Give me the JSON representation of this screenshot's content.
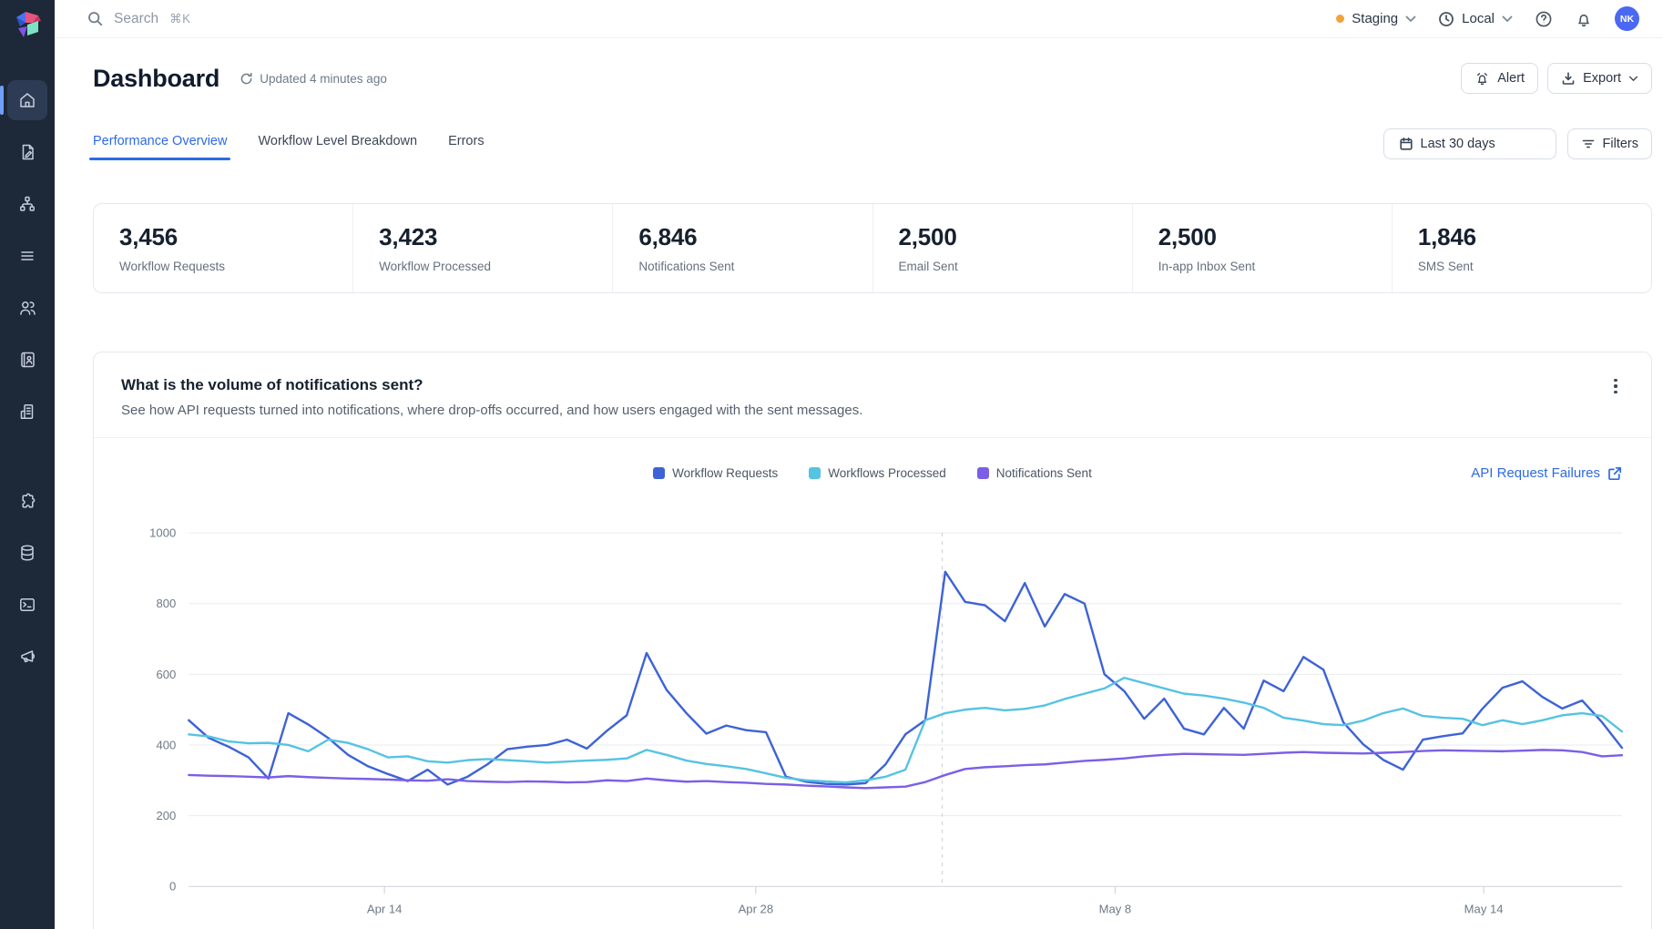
{
  "topbar": {
    "search_placeholder": "Search",
    "search_shortcut": "⌘K",
    "environment": {
      "label": "Staging",
      "dot_color": "#f0a23c"
    },
    "timezone": {
      "label": "Local"
    },
    "avatar_initials": "NK"
  },
  "sidebar": {
    "icons": [
      "home",
      "file-pen",
      "sitemap",
      "list",
      "users",
      "address-book",
      "building",
      "puzzle",
      "database",
      "terminal",
      "megaphone"
    ],
    "active_icon": "home"
  },
  "header": {
    "title": "Dashboard",
    "updated": "Updated 4 minutes ago",
    "alert_label": "Alert",
    "export_label": "Export"
  },
  "tabs": {
    "items": [
      "Performance Overview",
      "Workflow Level Breakdown",
      "Errors"
    ],
    "active_index": 0
  },
  "controls": {
    "date_range": "Last 30 days",
    "filters_label": "Filters"
  },
  "stats": [
    {
      "value": "3,456",
      "label": "Workflow Requests"
    },
    {
      "value": "3,423",
      "label": "Workflow Processed"
    },
    {
      "value": "6,846",
      "label": "Notifications Sent"
    },
    {
      "value": "2,500",
      "label": "Email Sent"
    },
    {
      "value": "2,500",
      "label": "In-app Inbox Sent"
    },
    {
      "value": "1,846",
      "label": "SMS Sent"
    }
  ],
  "chart_card": {
    "title": "What is the volume of notifications sent?",
    "subtitle": "See how API requests turned into notifications, where drop-offs occurred, and how users engaged with the sent messages.",
    "link_label": "API Request Failures"
  },
  "chart_data": {
    "type": "line",
    "title": "What is the volume of notifications sent?",
    "xlabel": "",
    "ylabel": "",
    "ylim": [
      0,
      1000
    ],
    "y_ticks": [
      0,
      200,
      400,
      600,
      800,
      1000
    ],
    "grid": true,
    "legend_position": "top-center",
    "marker_x_fraction": 0.5257,
    "x_ticks": [
      {
        "label": "Apr 14",
        "pos": 0.1365
      },
      {
        "label": "Apr 28",
        "pos": 0.3956
      },
      {
        "label": "May 8",
        "pos": 0.6463
      },
      {
        "label": "May 14",
        "pos": 0.9035
      }
    ],
    "series": [
      {
        "name": "Workflow Requests",
        "color": "#3d63d6",
        "values": [
          470,
          420,
          395,
          365,
          305,
          490,
          458,
          420,
          372,
          340,
          318,
          298,
          330,
          288,
          310,
          345,
          388,
          395,
          400,
          415,
          390,
          440,
          484,
          660,
          556,
          490,
          432,
          455,
          442,
          436,
          310,
          296,
          290,
          288,
          292,
          345,
          430,
          470,
          890,
          805,
          795,
          750,
          858,
          735,
          827,
          800,
          600,
          552,
          474,
          531,
          446,
          430,
          505,
          446,
          582,
          552,
          649,
          613,
          464,
          402,
          358,
          330,
          415,
          425,
          433,
          503,
          562,
          580,
          536,
          503,
          526,
          464,
          392
        ]
      },
      {
        "name": "Workflows Processed",
        "color": "#55c3e2",
        "values": [
          430,
          424,
          410,
          405,
          406,
          400,
          382,
          415,
          406,
          388,
          365,
          368,
          354,
          350,
          357,
          360,
          357,
          354,
          350,
          353,
          356,
          358,
          362,
          386,
          372,
          356,
          346,
          340,
          332,
          320,
          307,
          300,
          297,
          294,
          300,
          310,
          330,
          470,
          490,
          500,
          505,
          498,
          502,
          512,
          530,
          545,
          560,
          590,
          575,
          560,
          545,
          540,
          531,
          520,
          505,
          477,
          469,
          459,
          456,
          469,
          490,
          503,
          482,
          477,
          474,
          456,
          470,
          459,
          470,
          484,
          490,
          482,
          438
        ]
      },
      {
        "name": "Notifications Sent",
        "color": "#7b5fe6",
        "values": [
          315,
          313,
          312,
          310,
          308,
          312,
          309,
          307,
          305,
          304,
          302,
          300,
          299,
          303,
          298,
          296,
          295,
          297,
          296,
          294,
          295,
          300,
          298,
          305,
          300,
          296,
          298,
          295,
          293,
          290,
          288,
          285,
          283,
          280,
          278,
          280,
          282,
          295,
          315,
          332,
          337,
          340,
          343,
          345,
          350,
          355,
          358,
          362,
          368,
          372,
          375,
          374,
          373,
          372,
          375,
          378,
          380,
          378,
          377,
          376,
          378,
          380,
          383,
          385,
          384,
          383,
          382,
          384,
          386,
          385,
          380,
          368,
          371
        ]
      }
    ]
  }
}
